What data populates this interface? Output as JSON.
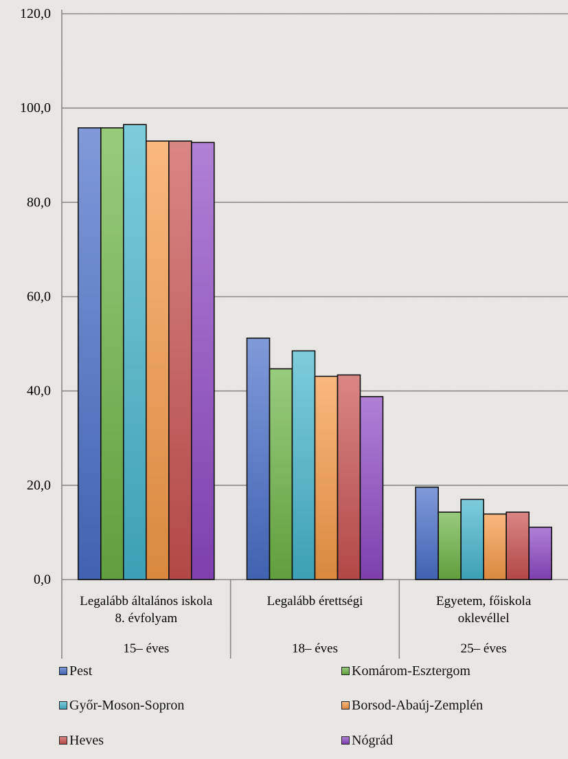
{
  "chart_data": {
    "type": "bar",
    "categories": [
      [
        "Legalább általános iskola",
        "8. évfolyam"
      ],
      [
        "Legalább érettségi"
      ],
      [
        "Egyetem, főiskola",
        "oklevéllel"
      ]
    ],
    "category_ages": [
      "15– éves",
      "18– éves",
      "25– éves"
    ],
    "y_ticks": [
      "0,0",
      "20,0",
      "40,0",
      "60,0",
      "80,0",
      "100,0",
      "120,0"
    ],
    "ylim": [
      0,
      120
    ],
    "grid": true,
    "legend_position": "bottom",
    "series": [
      {
        "name": "Pest",
        "color": "#4a6fc9",
        "values": [
          95.8,
          51.2,
          19.6
        ]
      },
      {
        "name": "Komárom-Esztergom",
        "color": "#6db545",
        "values": [
          95.8,
          44.7,
          14.3
        ]
      },
      {
        "name": "Győr-Moson-Sopron",
        "color": "#45b6cc",
        "values": [
          96.5,
          48.5,
          17.0
        ]
      },
      {
        "name": "Borsod-Abaúj-Zemplén",
        "color": "#f79a47",
        "values": [
          93.0,
          43.1,
          13.9
        ]
      },
      {
        "name": "Heves",
        "color": "#c95250",
        "values": [
          93.0,
          43.4,
          14.3
        ]
      },
      {
        "name": "Nógrád",
        "color": "#8e49c4",
        "values": [
          92.7,
          38.8,
          11.1
        ]
      }
    ]
  }
}
